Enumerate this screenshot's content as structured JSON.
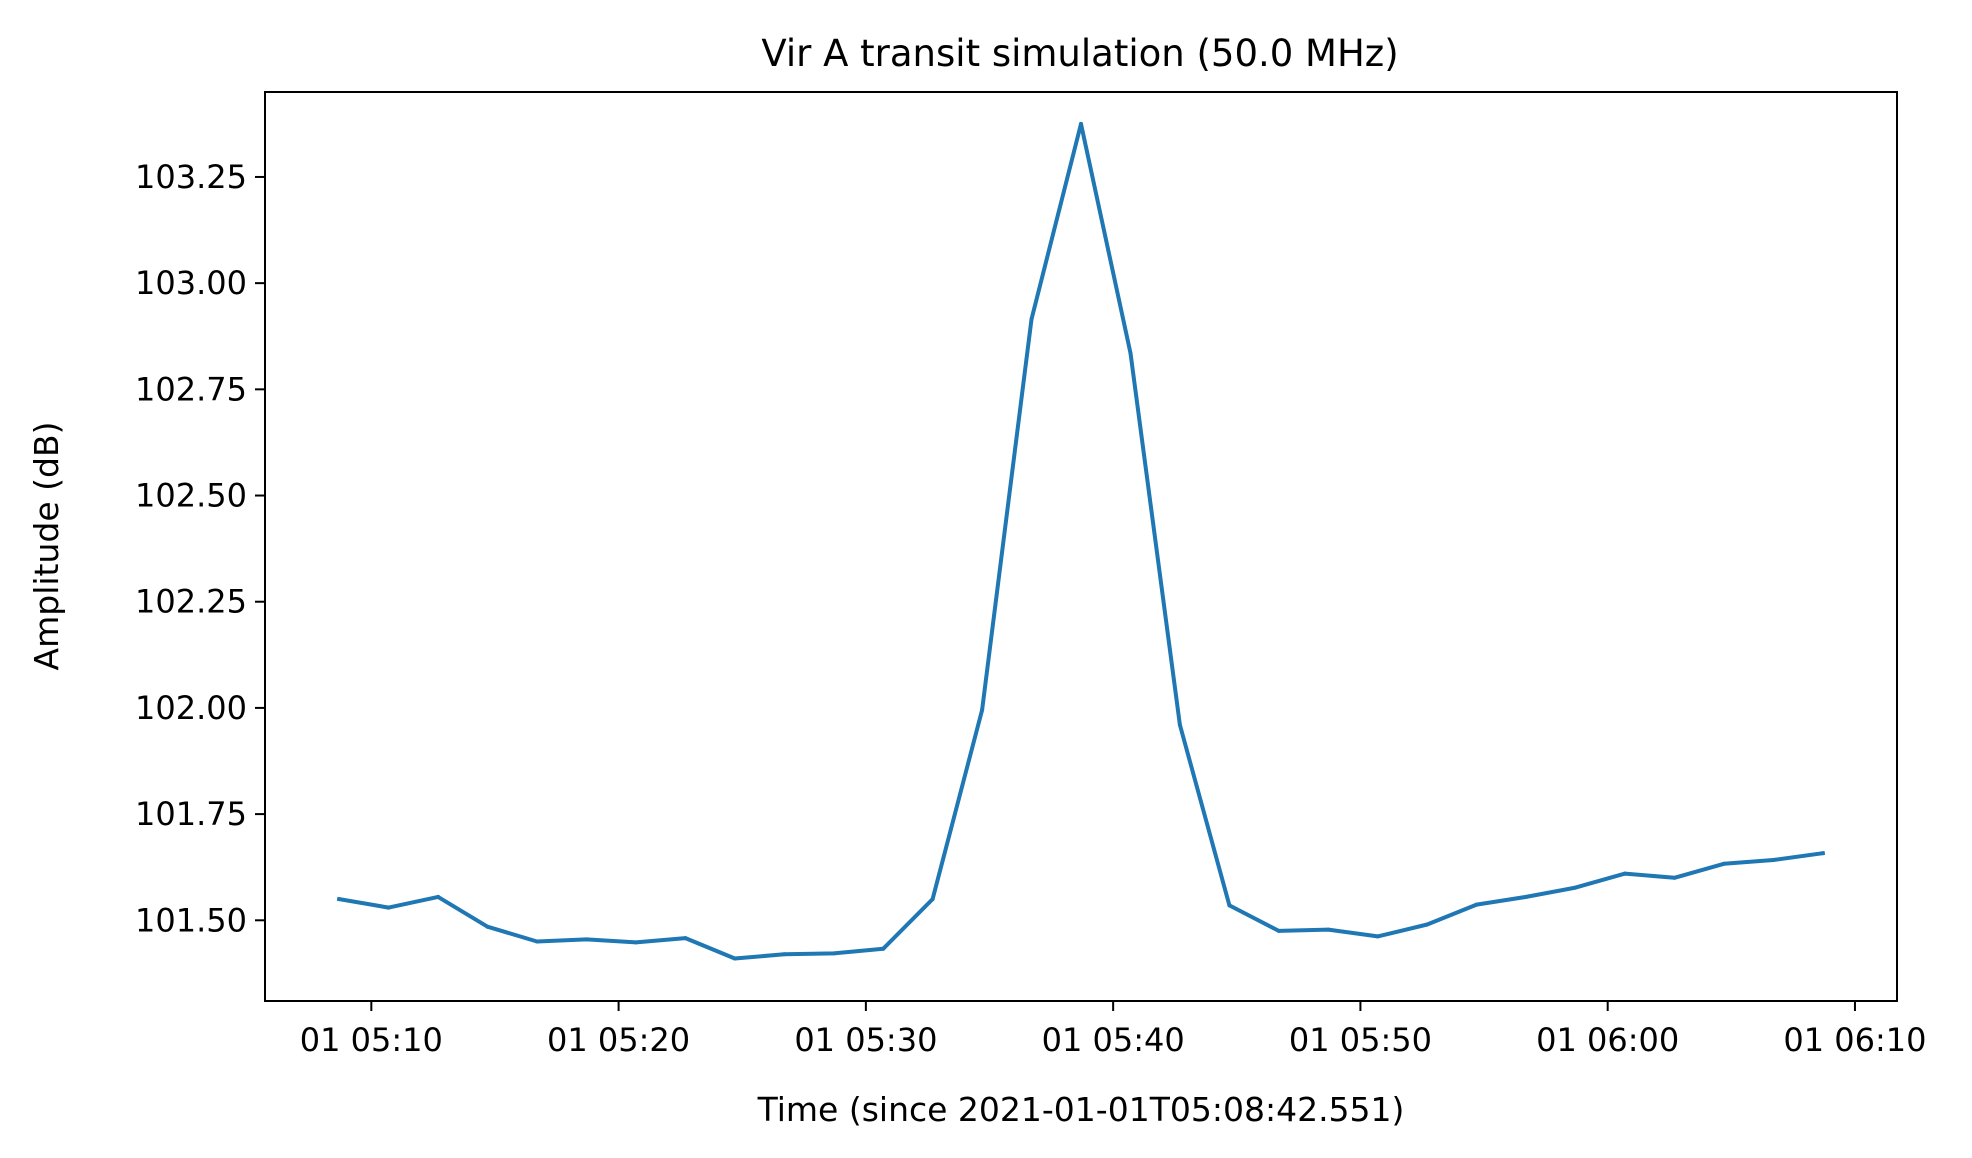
{
  "chart_data": {
    "type": "line",
    "title": "Vir A transit simulation (50.0 MHz)",
    "xlabel": "Time (since 2021-01-01T05:08:42.551)",
    "ylabel": "Amplitude (dB)",
    "x_tick_labels": [
      "01 05:10",
      "01 05:20",
      "01 05:30",
      "01 05:40",
      "01 05:50",
      "01 06:00",
      "01 06:10"
    ],
    "y_tick_labels": [
      "101.50",
      "101.75",
      "102.00",
      "102.25",
      "102.50",
      "102.75",
      "103.00",
      "103.25"
    ],
    "x_tick_times": [
      "05:10",
      "05:20",
      "05:30",
      "05:40",
      "05:50",
      "06:00",
      "06:10"
    ],
    "y_tick_values": [
      101.5,
      101.75,
      102.0,
      102.25,
      102.5,
      102.75,
      103.0,
      103.25
    ],
    "xlim": [
      "05:05:42",
      "06:11:42"
    ],
    "ylim": [
      101.31,
      103.45
    ],
    "grid": false,
    "series": [
      {
        "color": "#1f77b4",
        "x": [
          "05:08:42",
          "05:10:42",
          "05:12:42",
          "05:14:42",
          "05:16:42",
          "05:18:42",
          "05:20:42",
          "05:22:42",
          "05:24:42",
          "05:26:42",
          "05:28:42",
          "05:30:42",
          "05:32:42",
          "05:34:42",
          "05:36:42",
          "05:38:42",
          "05:40:42",
          "05:42:42",
          "05:44:42",
          "05:46:42",
          "05:48:42",
          "05:50:42",
          "05:52:42",
          "05:54:42",
          "05:56:42",
          "05:58:42",
          "06:00:42",
          "06:02:42",
          "06:04:42",
          "06:06:42",
          "06:08:42"
        ],
        "y": [
          101.55,
          101.53,
          101.555,
          101.485,
          101.45,
          101.455,
          101.448,
          101.458,
          101.41,
          101.42,
          101.422,
          101.433,
          101.55,
          101.995,
          102.915,
          103.375,
          102.835,
          101.96,
          101.535,
          101.475,
          101.478,
          101.462,
          101.49,
          101.537,
          101.555,
          101.577,
          101.61,
          101.6,
          101.633,
          101.642,
          101.658
        ]
      }
    ]
  }
}
